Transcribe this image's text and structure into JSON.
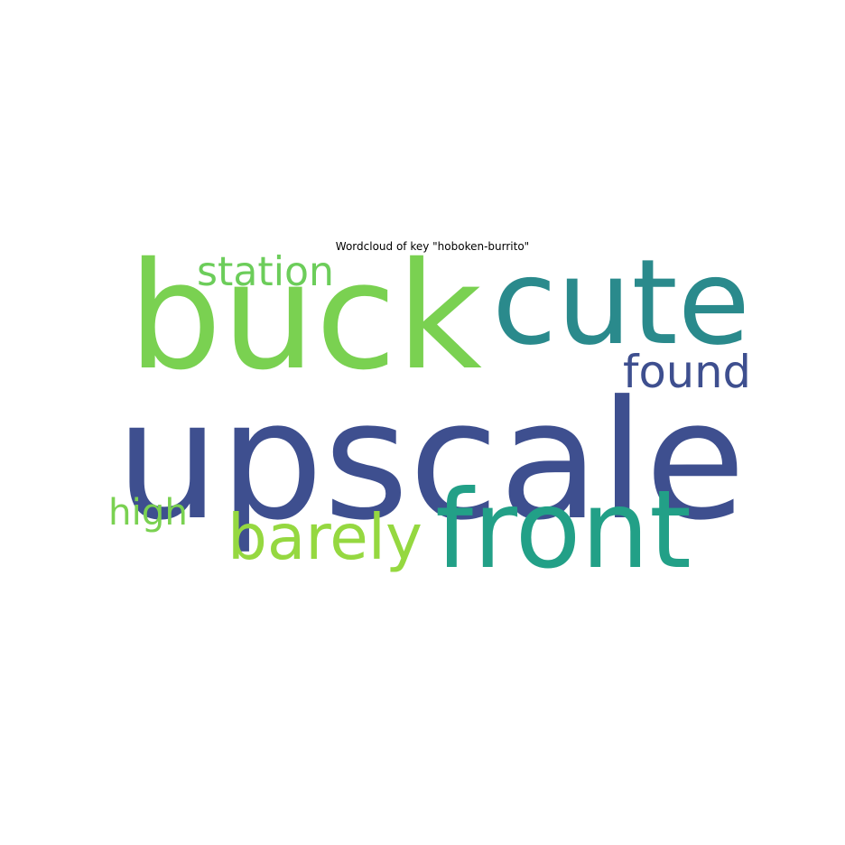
{
  "chart_data": {
    "type": "wordcloud",
    "title": "Wordcloud of key \"hoboken-burrito\"",
    "words": [
      {
        "text": "upscale",
        "color": "#3e4f8f"
      },
      {
        "text": "buck",
        "color": "#7ad151"
      },
      {
        "text": "cute",
        "color": "#2a8a8c"
      },
      {
        "text": "front",
        "color": "#22a087"
      },
      {
        "text": "found",
        "color": "#3e4f8f"
      },
      {
        "text": "barely",
        "color": "#95d840"
      },
      {
        "text": "station",
        "color": "#6ccd5a"
      },
      {
        "text": "high",
        "color": "#7ad151"
      }
    ]
  }
}
